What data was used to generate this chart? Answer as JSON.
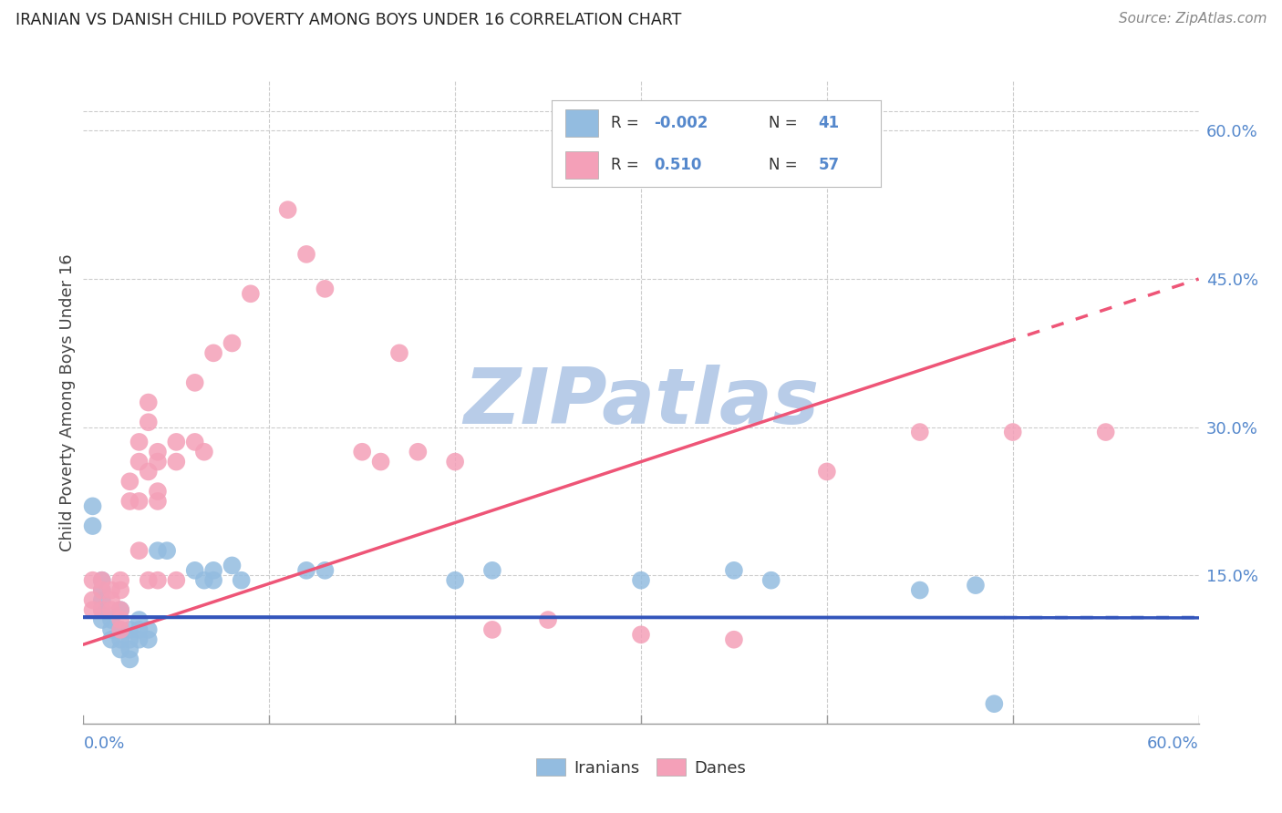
{
  "title": "IRANIAN VS DANISH CHILD POVERTY AMONG BOYS UNDER 16 CORRELATION CHART",
  "source": "Source: ZipAtlas.com",
  "ylabel": "Child Poverty Among Boys Under 16",
  "ytick_labels": [
    "15.0%",
    "30.0%",
    "45.0%",
    "60.0%"
  ],
  "ytick_values": [
    0.15,
    0.3,
    0.45,
    0.6
  ],
  "xmin": 0.0,
  "xmax": 0.6,
  "ymin": 0.0,
  "ymax": 0.65,
  "watermark": "ZIPatlas",
  "watermark_color": "#b8cce8",
  "iranians_color": "#93bce0",
  "danes_color": "#f4a0b8",
  "iranians_line_color": "#3355bb",
  "danes_line_color": "#ee5577",
  "grid_color": "#cccccc",
  "background_color": "#ffffff",
  "tick_label_color": "#5588cc",
  "iranians_data": [
    [
      0.005,
      0.22
    ],
    [
      0.005,
      0.2
    ],
    [
      0.01,
      0.145
    ],
    [
      0.01,
      0.135
    ],
    [
      0.01,
      0.125
    ],
    [
      0.01,
      0.115
    ],
    [
      0.01,
      0.105
    ],
    [
      0.015,
      0.105
    ],
    [
      0.015,
      0.095
    ],
    [
      0.015,
      0.085
    ],
    [
      0.02,
      0.115
    ],
    [
      0.02,
      0.095
    ],
    [
      0.02,
      0.085
    ],
    [
      0.02,
      0.075
    ],
    [
      0.025,
      0.095
    ],
    [
      0.025,
      0.085
    ],
    [
      0.025,
      0.075
    ],
    [
      0.025,
      0.065
    ],
    [
      0.03,
      0.105
    ],
    [
      0.03,
      0.095
    ],
    [
      0.03,
      0.085
    ],
    [
      0.035,
      0.095
    ],
    [
      0.035,
      0.085
    ],
    [
      0.04,
      0.175
    ],
    [
      0.045,
      0.175
    ],
    [
      0.06,
      0.155
    ],
    [
      0.065,
      0.145
    ],
    [
      0.07,
      0.155
    ],
    [
      0.07,
      0.145
    ],
    [
      0.08,
      0.16
    ],
    [
      0.085,
      0.145
    ],
    [
      0.12,
      0.155
    ],
    [
      0.13,
      0.155
    ],
    [
      0.2,
      0.145
    ],
    [
      0.22,
      0.155
    ],
    [
      0.3,
      0.145
    ],
    [
      0.35,
      0.155
    ],
    [
      0.37,
      0.145
    ],
    [
      0.45,
      0.135
    ],
    [
      0.48,
      0.14
    ],
    [
      0.49,
      0.02
    ]
  ],
  "danes_data": [
    [
      0.005,
      0.145
    ],
    [
      0.005,
      0.125
    ],
    [
      0.005,
      0.115
    ],
    [
      0.01,
      0.145
    ],
    [
      0.01,
      0.135
    ],
    [
      0.01,
      0.115
    ],
    [
      0.015,
      0.135
    ],
    [
      0.015,
      0.125
    ],
    [
      0.015,
      0.115
    ],
    [
      0.02,
      0.145
    ],
    [
      0.02,
      0.135
    ],
    [
      0.02,
      0.115
    ],
    [
      0.02,
      0.105
    ],
    [
      0.02,
      0.095
    ],
    [
      0.025,
      0.245
    ],
    [
      0.025,
      0.225
    ],
    [
      0.03,
      0.285
    ],
    [
      0.03,
      0.265
    ],
    [
      0.03,
      0.225
    ],
    [
      0.03,
      0.175
    ],
    [
      0.035,
      0.325
    ],
    [
      0.035,
      0.305
    ],
    [
      0.035,
      0.255
    ],
    [
      0.035,
      0.145
    ],
    [
      0.04,
      0.275
    ],
    [
      0.04,
      0.265
    ],
    [
      0.04,
      0.235
    ],
    [
      0.04,
      0.225
    ],
    [
      0.04,
      0.145
    ],
    [
      0.05,
      0.285
    ],
    [
      0.05,
      0.265
    ],
    [
      0.05,
      0.145
    ],
    [
      0.06,
      0.345
    ],
    [
      0.06,
      0.285
    ],
    [
      0.065,
      0.275
    ],
    [
      0.07,
      0.375
    ],
    [
      0.08,
      0.385
    ],
    [
      0.09,
      0.435
    ],
    [
      0.11,
      0.52
    ],
    [
      0.12,
      0.475
    ],
    [
      0.13,
      0.44
    ],
    [
      0.15,
      0.275
    ],
    [
      0.16,
      0.265
    ],
    [
      0.17,
      0.375
    ],
    [
      0.18,
      0.275
    ],
    [
      0.2,
      0.265
    ],
    [
      0.22,
      0.095
    ],
    [
      0.25,
      0.105
    ],
    [
      0.3,
      0.09
    ],
    [
      0.35,
      0.085
    ],
    [
      0.4,
      0.255
    ],
    [
      0.45,
      0.295
    ],
    [
      0.5,
      0.295
    ],
    [
      0.55,
      0.295
    ]
  ],
  "iranians_line_x": [
    0.0,
    0.6
  ],
  "iranians_line_y": [
    0.108,
    0.107
  ],
  "danes_line_x": [
    0.0,
    0.6
  ],
  "danes_line_y": [
    0.08,
    0.45
  ]
}
